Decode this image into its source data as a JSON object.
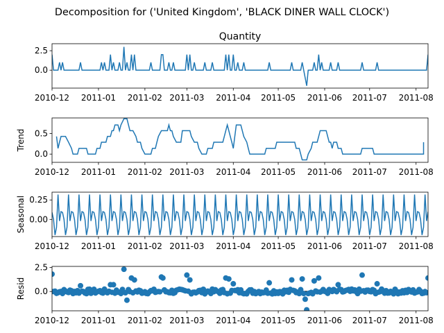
{
  "figure": {
    "suptitle": "Decomposition for ('United Kingdom', 'BLACK DINER WALL CLOCK')",
    "line_color": "#1f77b4",
    "zero_line_color": "#000000"
  },
  "chart_data": [
    {
      "type": "line",
      "panel": "observed",
      "title": "Quantity",
      "ylabel": "",
      "ylim": [
        -2.3,
        3.4
      ],
      "yticks": [
        0.0,
        2.5
      ],
      "ytick_labels": [
        "0.0",
        "2.5"
      ],
      "xlim": [
        "2010-12-01",
        "2011-08-09"
      ],
      "xticks": [
        "2010-12",
        "2011-01",
        "2011-02",
        "2011-03",
        "2011-04",
        "2011-05",
        "2011-06",
        "2011-07",
        "2011-08"
      ],
      "baseline": 0,
      "spikes": [
        [
          "2010-12-01",
          2
        ],
        [
          "2010-12-06",
          1
        ],
        [
          "2010-12-08",
          1
        ],
        [
          "2010-12-20",
          1
        ],
        [
          "2011-01-03",
          1
        ],
        [
          "2011-01-05",
          1
        ],
        [
          "2011-01-09",
          2
        ],
        [
          "2011-01-11",
          1
        ],
        [
          "2011-01-15",
          1
        ],
        [
          "2011-01-18",
          3
        ],
        [
          "2011-01-20",
          1
        ],
        [
          "2011-01-23",
          2
        ],
        [
          "2011-01-25",
          2
        ],
        [
          "2011-02-05",
          1
        ],
        [
          "2011-02-12",
          2
        ],
        [
          "2011-02-13",
          2
        ],
        [
          "2011-02-17",
          1
        ],
        [
          "2011-02-20",
          1
        ],
        [
          "2011-03-01",
          2
        ],
        [
          "2011-03-03",
          2
        ],
        [
          "2011-03-06",
          1
        ],
        [
          "2011-03-13",
          1
        ],
        [
          "2011-03-18",
          1
        ],
        [
          "2011-03-27",
          2
        ],
        [
          "2011-03-29",
          2
        ],
        [
          "2011-04-01",
          2
        ],
        [
          "2011-04-04",
          1
        ],
        [
          "2011-04-08",
          1
        ],
        [
          "2011-04-25",
          1
        ],
        [
          "2011-05-10",
          1
        ],
        [
          "2011-05-17",
          1
        ],
        [
          "2011-05-19",
          -1
        ],
        [
          "2011-05-20",
          -2
        ],
        [
          "2011-05-25",
          1
        ],
        [
          "2011-05-28",
          2
        ],
        [
          "2011-05-30",
          1
        ],
        [
          "2011-06-05",
          1
        ],
        [
          "2011-06-10",
          1
        ],
        [
          "2011-06-26",
          1
        ],
        [
          "2011-07-06",
          1
        ],
        [
          "2011-08-09",
          2
        ]
      ]
    },
    {
      "type": "line",
      "panel": "trend",
      "title": "",
      "ylabel": "Trend",
      "ylim": [
        -0.2,
        0.88
      ],
      "yticks": [
        0.0,
        0.5
      ],
      "ytick_labels": [
        "0.0",
        "0.5"
      ],
      "xlim": [
        "2010-12-01",
        "2011-08-09"
      ],
      "xticks": [
        "2010-12",
        "2011-01",
        "2011-02",
        "2011-03",
        "2011-04",
        "2011-05",
        "2011-06",
        "2011-07",
        "2011-08"
      ],
      "points": [
        [
          "2010-12-04",
          0.43
        ],
        [
          "2010-12-05",
          0.14
        ],
        [
          "2010-12-06",
          0.29
        ],
        [
          "2010-12-07",
          0.43
        ],
        [
          "2010-12-10",
          0.43
        ],
        [
          "2010-12-12",
          0.29
        ],
        [
          "2010-12-14",
          0.14
        ],
        [
          "2010-12-15",
          0.0
        ],
        [
          "2010-12-18",
          0.0
        ],
        [
          "2010-12-19",
          0.14
        ],
        [
          "2010-12-24",
          0.14
        ],
        [
          "2010-12-25",
          0.0
        ],
        [
          "2010-12-30",
          0.0
        ],
        [
          "2010-12-31",
          0.14
        ],
        [
          "2011-01-02",
          0.14
        ],
        [
          "2011-01-03",
          0.29
        ],
        [
          "2011-01-06",
          0.29
        ],
        [
          "2011-01-07",
          0.43
        ],
        [
          "2011-01-09",
          0.43
        ],
        [
          "2011-01-10",
          0.57
        ],
        [
          "2011-01-11",
          0.57
        ],
        [
          "2011-01-12",
          0.71
        ],
        [
          "2011-01-14",
          0.71
        ],
        [
          "2011-01-15",
          0.57
        ],
        [
          "2011-01-16",
          0.71
        ],
        [
          "2011-01-18",
          0.86
        ],
        [
          "2011-01-20",
          0.86
        ],
        [
          "2011-01-22",
          0.57
        ],
        [
          "2011-01-24",
          0.57
        ],
        [
          "2011-01-26",
          0.43
        ],
        [
          "2011-01-27",
          0.29
        ],
        [
          "2011-01-29",
          0.29
        ],
        [
          "2011-01-30",
          0.14
        ],
        [
          "2011-02-01",
          0.0
        ],
        [
          "2011-02-05",
          0.0
        ],
        [
          "2011-02-06",
          0.14
        ],
        [
          "2011-02-08",
          0.14
        ],
        [
          "2011-02-09",
          0.29
        ],
        [
          "2011-02-10",
          0.43
        ],
        [
          "2011-02-12",
          0.57
        ],
        [
          "2011-02-16",
          0.57
        ],
        [
          "2011-02-17",
          0.71
        ],
        [
          "2011-02-18",
          0.57
        ],
        [
          "2011-02-19",
          0.57
        ],
        [
          "2011-02-20",
          0.43
        ],
        [
          "2011-02-22",
          0.29
        ],
        [
          "2011-02-25",
          0.29
        ],
        [
          "2011-02-26",
          0.57
        ],
        [
          "2011-03-03",
          0.57
        ],
        [
          "2011-03-04",
          0.43
        ],
        [
          "2011-03-06",
          0.29
        ],
        [
          "2011-03-08",
          0.29
        ],
        [
          "2011-03-09",
          0.14
        ],
        [
          "2011-03-11",
          0.0
        ],
        [
          "2011-03-14",
          0.0
        ],
        [
          "2011-03-15",
          0.14
        ],
        [
          "2011-03-18",
          0.14
        ],
        [
          "2011-03-19",
          0.29
        ],
        [
          "2011-03-25",
          0.29
        ],
        [
          "2011-03-26",
          0.43
        ],
        [
          "2011-03-27",
          0.57
        ],
        [
          "2011-03-28",
          0.71
        ],
        [
          "2011-03-29",
          0.57
        ],
        [
          "2011-03-30",
          0.43
        ],
        [
          "2011-03-31",
          0.29
        ],
        [
          "2011-04-01",
          0.14
        ],
        [
          "2011-04-02",
          0.43
        ],
        [
          "2011-04-03",
          0.71
        ],
        [
          "2011-04-06",
          0.71
        ],
        [
          "2011-04-07",
          0.57
        ],
        [
          "2011-04-08",
          0.43
        ],
        [
          "2011-04-10",
          0.29
        ],
        [
          "2011-04-11",
          0.14
        ],
        [
          "2011-04-12",
          0.0
        ],
        [
          "2011-04-22",
          0.0
        ],
        [
          "2011-04-23",
          0.14
        ],
        [
          "2011-04-29",
          0.14
        ],
        [
          "2011-04-30",
          0.29
        ],
        [
          "2011-05-12",
          0.29
        ],
        [
          "2011-05-13",
          0.14
        ],
        [
          "2011-05-15",
          0.14
        ],
        [
          "2011-05-16",
          0.0
        ],
        [
          "2011-05-17",
          -0.14
        ],
        [
          "2011-05-20",
          -0.14
        ],
        [
          "2011-05-21",
          0.0
        ],
        [
          "2011-05-23",
          0.14
        ],
        [
          "2011-05-24",
          0.29
        ],
        [
          "2011-05-27",
          0.29
        ],
        [
          "2011-05-28",
          0.43
        ],
        [
          "2011-05-29",
          0.57
        ],
        [
          "2011-06-02",
          0.57
        ],
        [
          "2011-06-03",
          0.43
        ],
        [
          "2011-06-04",
          0.29
        ],
        [
          "2011-06-05",
          0.29
        ],
        [
          "2011-06-06",
          0.14
        ],
        [
          "2011-06-07",
          0.29
        ],
        [
          "2011-06-09",
          0.29
        ],
        [
          "2011-06-10",
          0.14
        ],
        [
          "2011-06-12",
          0.14
        ],
        [
          "2011-06-13",
          0.0
        ],
        [
          "2011-06-25",
          0.0
        ],
        [
          "2011-06-26",
          0.14
        ],
        [
          "2011-07-03",
          0.14
        ],
        [
          "2011-07-04",
          0.0
        ],
        [
          "2011-08-06",
          0.0
        ],
        [
          "2011-08-06",
          0.29
        ]
      ]
    },
    {
      "type": "line",
      "panel": "seasonal",
      "title": "",
      "ylabel": "Seasonal",
      "ylim": [
        -0.22,
        0.35
      ],
      "yticks": [
        0.0,
        0.25
      ],
      "ytick_labels": [
        "0.00",
        "0.25"
      ],
      "xlim": [
        "2010-12-01",
        "2011-08-09"
      ],
      "xticks": [
        "2010-12",
        "2011-01",
        "2011-02",
        "2011-03",
        "2011-04",
        "2011-05",
        "2011-06",
        "2011-07",
        "2011-08"
      ],
      "period_start": "2010-12-01",
      "pattern": [
        0.09,
        0.0,
        -0.2,
        -0.1,
        0.32,
        -0.02,
        0.1
      ]
    },
    {
      "type": "scatter",
      "panel": "resid",
      "title": "",
      "ylabel": "Resid",
      "ylim": [
        -2.0,
        2.6
      ],
      "yticks": [
        0.0,
        2.5
      ],
      "ytick_labels": [
        "0.0",
        "2.5"
      ],
      "xlim": [
        "2010-12-01",
        "2011-08-09"
      ],
      "xticks": [
        "2010-12",
        "2011-01",
        "2011-02",
        "2011-03",
        "2011-04",
        "2011-05",
        "2011-06",
        "2011-07",
        "2011-08"
      ],
      "zero_line": true,
      "outliers": [
        [
          "2011-01-18",
          2.3
        ],
        [
          "2011-01-20",
          -0.9
        ],
        [
          "2011-01-23",
          1.4
        ],
        [
          "2011-01-25",
          1.2
        ],
        [
          "2011-01-09",
          0.7
        ],
        [
          "2011-01-11",
          0.7
        ],
        [
          "2011-02-12",
          1.5
        ],
        [
          "2011-02-13",
          1.4
        ],
        [
          "2011-03-01",
          1.7
        ],
        [
          "2011-03-03",
          1.2
        ],
        [
          "2011-03-27",
          1.4
        ],
        [
          "2011-03-29",
          1.3
        ],
        [
          "2011-04-01",
          0.8
        ],
        [
          "2011-04-25",
          0.9
        ],
        [
          "2011-05-10",
          1.2
        ],
        [
          "2011-05-17",
          1.3
        ],
        [
          "2011-05-20",
          -1.9
        ],
        [
          "2011-05-19",
          -0.8
        ],
        [
          "2011-05-28",
          1.4
        ],
        [
          "2011-05-25",
          1.1
        ],
        [
          "2011-06-10",
          0.7
        ],
        [
          "2011-06-26",
          1.7
        ],
        [
          "2011-07-06",
          0.8
        ],
        [
          "2010-12-01",
          1.8
        ],
        [
          "2010-12-20",
          0.6
        ],
        [
          "2011-08-09",
          1.4
        ]
      ]
    }
  ]
}
